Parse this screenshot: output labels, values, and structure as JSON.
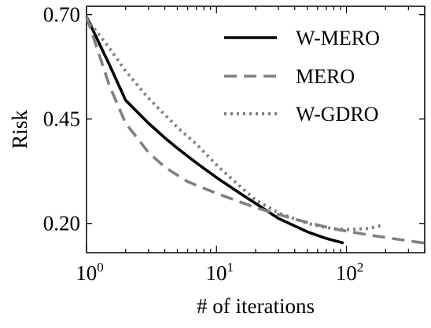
{
  "chart_data": {
    "type": "line",
    "xlabel": "# of iterations",
    "ylabel": "Risk",
    "xscale": "log",
    "xlim": [
      1,
      400
    ],
    "ylim": [
      0.13,
      0.72
    ],
    "xticks": [
      {
        "value": 1,
        "base": "10",
        "exp": "0"
      },
      {
        "value": 10,
        "base": "10",
        "exp": "1"
      },
      {
        "value": 100,
        "base": "10",
        "exp": "2"
      }
    ],
    "yticks": [
      {
        "value": 0.2,
        "label": "0.20"
      },
      {
        "value": 0.45,
        "label": "0.45"
      },
      {
        "value": 0.7,
        "label": "0.70"
      }
    ],
    "legend_position": "top-right",
    "series": [
      {
        "name": "W-MERO",
        "color": "#000000",
        "style": "solid",
        "x": [
          1,
          1.5,
          2,
          3,
          4,
          5,
          7,
          10,
          15,
          20,
          30,
          50,
          70,
          95
        ],
        "y": [
          0.695,
          0.58,
          0.495,
          0.44,
          0.405,
          0.38,
          0.345,
          0.31,
          0.273,
          0.248,
          0.212,
          0.18,
          0.164,
          0.153
        ]
      },
      {
        "name": "MERO",
        "color": "#808080",
        "style": "dashed",
        "x": [
          1,
          1.5,
          2,
          3,
          4,
          6,
          10,
          20,
          40,
          80,
          150,
          250,
          400
        ],
        "y": [
          0.695,
          0.53,
          0.44,
          0.37,
          0.335,
          0.3,
          0.272,
          0.238,
          0.21,
          0.187,
          0.172,
          0.162,
          0.153
        ]
      },
      {
        "name": "W-GDRO",
        "color": "#808080",
        "style": "dotted",
        "x": [
          1,
          1.5,
          2,
          3,
          5,
          7,
          10,
          15,
          20,
          30,
          50,
          70,
          100,
          150,
          190
        ],
        "y": [
          0.69,
          0.62,
          0.565,
          0.5,
          0.43,
          0.39,
          0.34,
          0.29,
          0.256,
          0.225,
          0.2,
          0.19,
          0.185,
          0.188,
          0.196
        ]
      }
    ]
  }
}
